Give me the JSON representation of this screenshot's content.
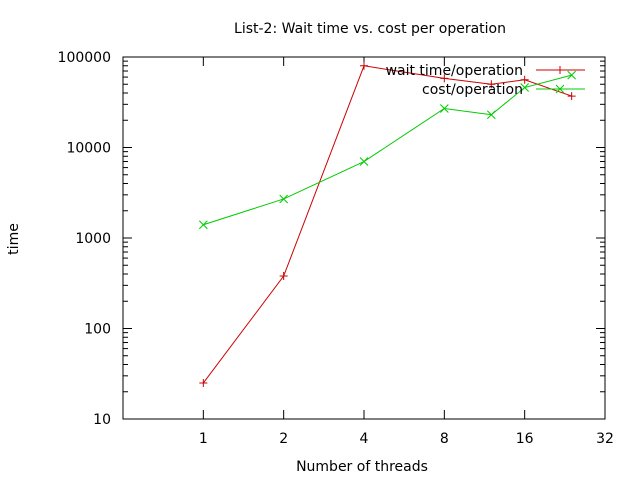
{
  "chart_data": {
    "type": "line",
    "title": "List-2: Wait time vs. cost per operation",
    "xlabel": "Number of threads",
    "ylabel": "time",
    "x_scale": "log2",
    "y_scale": "log10",
    "xlim": [
      0.5,
      32
    ],
    "ylim": [
      10,
      100000
    ],
    "x_ticks": [
      1,
      2,
      4,
      8,
      16,
      32
    ],
    "x_tick_labels": [
      "1",
      "2",
      "4",
      "8",
      "16",
      "32"
    ],
    "y_ticks": [
      10,
      100,
      1000,
      10000,
      100000
    ],
    "y_tick_labels": [
      "10",
      "100",
      "1000",
      "10000",
      "100000"
    ],
    "legend_position": "top-right",
    "series": [
      {
        "name": "wait time/operation",
        "color": "#cc0000",
        "marker": "plus",
        "x": [
          1,
          2,
          4,
          8,
          12,
          16,
          24
        ],
        "y": [
          25,
          380,
          80000,
          58000,
          50000,
          56000,
          37000
        ]
      },
      {
        "name": "cost/operation",
        "color": "#00cc00",
        "marker": "x",
        "x": [
          1,
          2,
          4,
          8,
          12,
          16,
          24
        ],
        "y": [
          1400,
          2700,
          7000,
          27000,
          23000,
          46000,
          63000
        ]
      }
    ]
  }
}
